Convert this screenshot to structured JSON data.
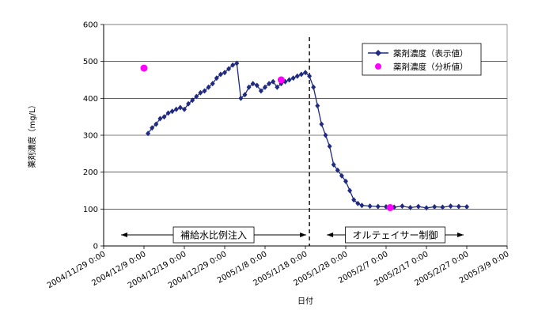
{
  "chart_data": {
    "type": "line",
    "xlabel": "日付",
    "ylabel": "薬剤濃度（mg/L）",
    "ylim": [
      0,
      600
    ],
    "yticks": [
      0,
      100,
      200,
      300,
      400,
      500,
      600
    ],
    "xlim": [
      "2004/11/29 0:00",
      "2005/3/9 0:00"
    ],
    "xtick_labels": [
      "2004/11/29 0:00",
      "2004/12/9 0:00",
      "2004/12/19 0:00",
      "2004/12/29 0:00",
      "2005/1/8 0:00",
      "2005/1/18 0:00",
      "2005/1/28 0:00",
      "2005/2/7 0:00",
      "2005/2/17 0:00",
      "2005/2/27 0:00",
      "2005/3/9 0:00"
    ],
    "grid": "horizontal",
    "legend_position": "top-right",
    "colors": {
      "series1": "#1f2a80",
      "series2": "#ff00ff"
    },
    "series": [
      {
        "name": "薬剤濃度（表示値）",
        "marker": "diamond",
        "points": [
          [
            "2004/12/10",
            305
          ],
          [
            "2004/12/11",
            320
          ],
          [
            "2004/12/12",
            330
          ],
          [
            "2004/12/13",
            345
          ],
          [
            "2004/12/14",
            350
          ],
          [
            "2004/12/15",
            360
          ],
          [
            "2004/12/16",
            365
          ],
          [
            "2004/12/17",
            370
          ],
          [
            "2004/12/18",
            375
          ],
          [
            "2004/12/19",
            370
          ],
          [
            "2004/12/20",
            385
          ],
          [
            "2004/12/21",
            395
          ],
          [
            "2004/12/22",
            405
          ],
          [
            "2004/12/23",
            415
          ],
          [
            "2004/12/24",
            420
          ],
          [
            "2004/12/25",
            430
          ],
          [
            "2004/12/26",
            440
          ],
          [
            "2004/12/27",
            455
          ],
          [
            "2004/12/28",
            465
          ],
          [
            "2004/12/29",
            470
          ],
          [
            "2004/12/30",
            480
          ],
          [
            "2004/12/31",
            490
          ],
          [
            "2005/1/1",
            495
          ],
          [
            "2005/1/2",
            400
          ],
          [
            "2005/1/3",
            410
          ],
          [
            "2005/1/4",
            430
          ],
          [
            "2005/1/5",
            440
          ],
          [
            "2005/1/6",
            435
          ],
          [
            "2005/1/7",
            420
          ],
          [
            "2005/1/8",
            430
          ],
          [
            "2005/1/9",
            440
          ],
          [
            "2005/1/10",
            445
          ],
          [
            "2005/1/11",
            430
          ],
          [
            "2005/1/12",
            440
          ],
          [
            "2005/1/13",
            445
          ],
          [
            "2005/1/14",
            450
          ],
          [
            "2005/1/15",
            455
          ],
          [
            "2005/1/16",
            460
          ],
          [
            "2005/1/17",
            465
          ],
          [
            "2005/1/18",
            470
          ],
          [
            "2005/1/19",
            460
          ],
          [
            "2005/1/20",
            430
          ],
          [
            "2005/1/21",
            380
          ],
          [
            "2005/1/22",
            330
          ],
          [
            "2005/1/23",
            300
          ],
          [
            "2005/1/24",
            270
          ],
          [
            "2005/1/25",
            220
          ],
          [
            "2005/1/26",
            205
          ],
          [
            "2005/1/27",
            190
          ],
          [
            "2005/1/28",
            175
          ],
          [
            "2005/1/29",
            150
          ],
          [
            "2005/1/30",
            125
          ],
          [
            "2005/1/31",
            115
          ],
          [
            "2005/2/1",
            110
          ],
          [
            "2005/2/3",
            108
          ],
          [
            "2005/2/5",
            107
          ],
          [
            "2005/2/7",
            106
          ],
          [
            "2005/2/9",
            105
          ],
          [
            "2005/2/11",
            108
          ],
          [
            "2005/2/13",
            104
          ],
          [
            "2005/2/15",
            107
          ],
          [
            "2005/2/17",
            103
          ],
          [
            "2005/2/19",
            106
          ],
          [
            "2005/2/21",
            105
          ],
          [
            "2005/2/23",
            108
          ],
          [
            "2005/2/25",
            107
          ],
          [
            "2005/2/27",
            106
          ]
        ]
      },
      {
        "name": "薬剤濃度（分析値）",
        "marker": "circle",
        "points": [
          [
            "2004/12/9",
            482
          ],
          [
            "2005/1/12",
            450
          ],
          [
            "2005/2/8",
            104
          ]
        ]
      }
    ],
    "annotations": [
      {
        "text": "補給水比例注入",
        "from": "2004/11/29",
        "to": "2005/1/19",
        "y": 30
      },
      {
        "text": "オルテェイサー制御",
        "from": "2005/1/19",
        "to": "2005/2/27",
        "y": 30
      }
    ],
    "vline": {
      "x": "2005/1/19"
    }
  }
}
